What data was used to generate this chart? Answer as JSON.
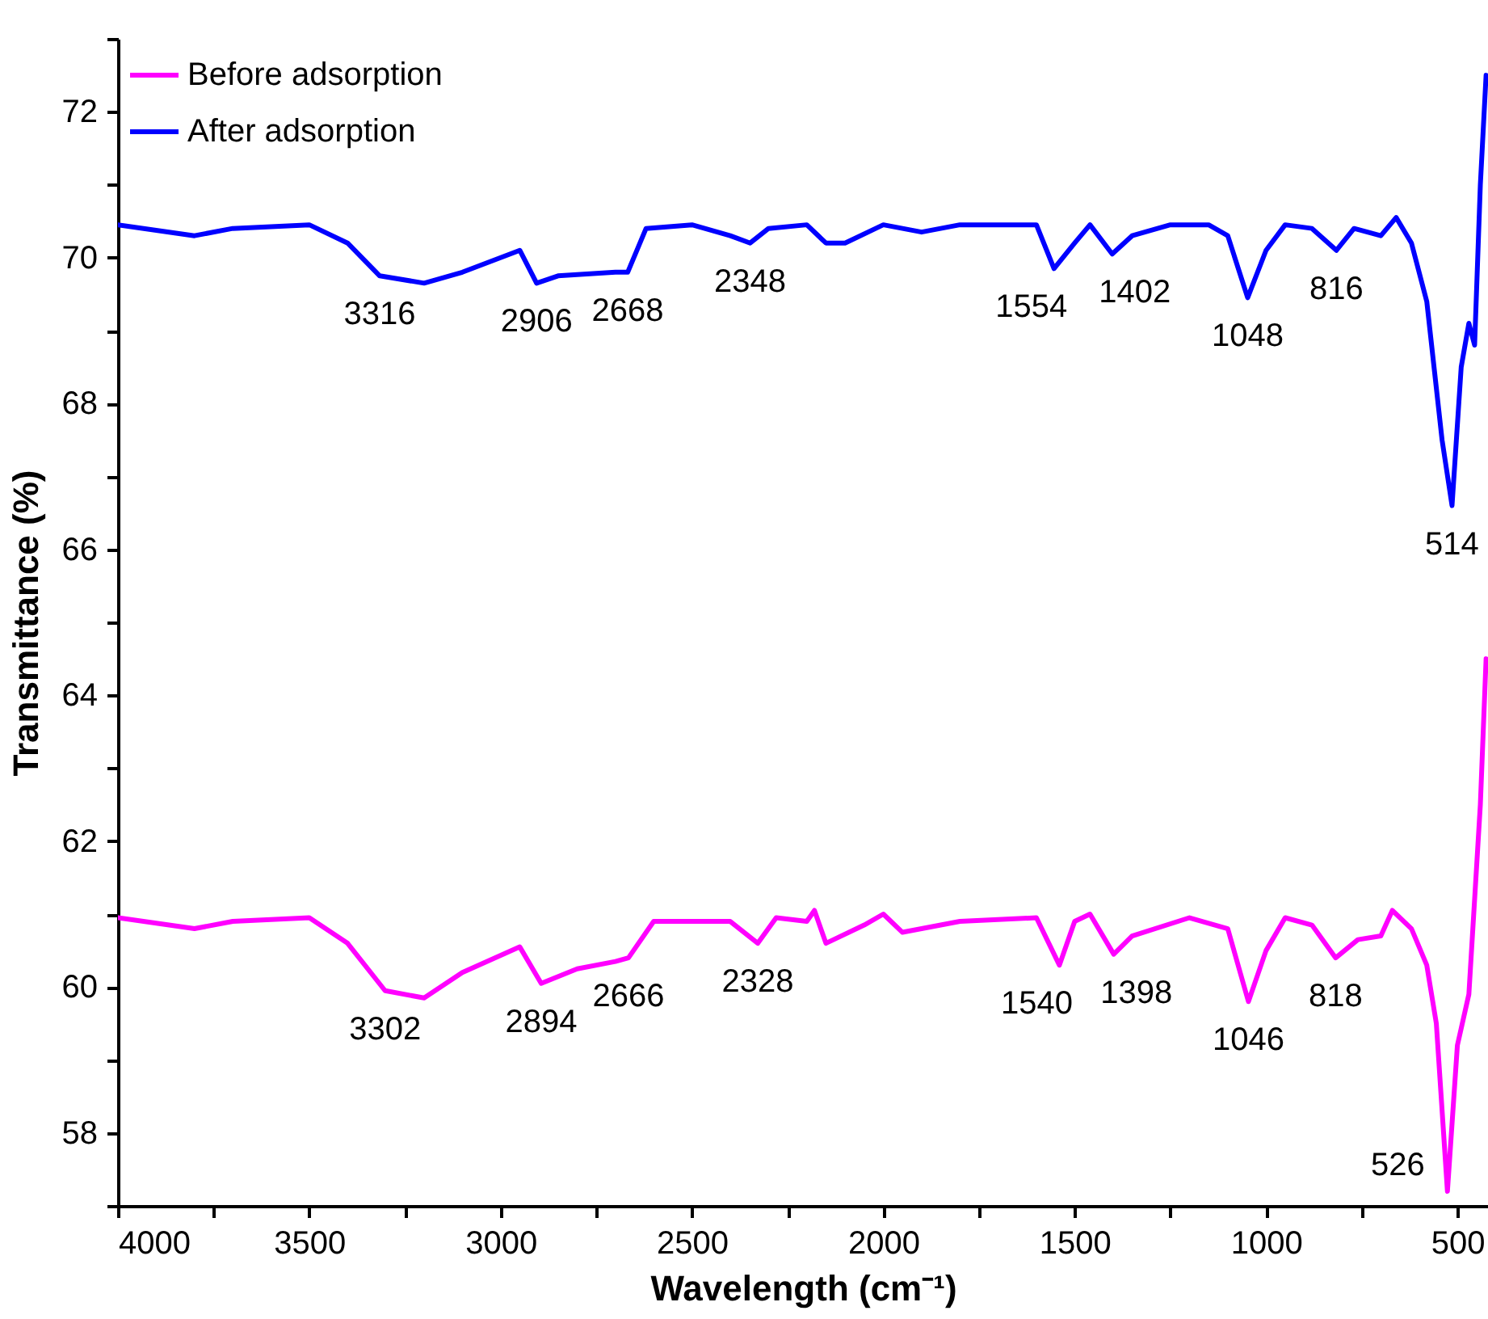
{
  "chart_data": {
    "type": "line",
    "xlabel": "Wavelength (cm⁻¹)",
    "ylabel": "Transmittance (%)",
    "xlim": [
      4000,
      420
    ],
    "ylim": [
      57,
      73
    ],
    "xticks": [
      4000,
      {
        "value": 3750,
        "label": null
      },
      3500,
      {
        "value": 3250,
        "label": null
      },
      3000,
      {
        "value": 2750,
        "label": null
      },
      2500,
      {
        "value": 2250,
        "label": null
      },
      2000,
      {
        "value": 1750,
        "label": null
      },
      1500,
      {
        "value": 1250,
        "label": null
      },
      1000,
      {
        "value": 750,
        "label": null
      },
      500
    ],
    "yticks": [
      {
        "value": 57,
        "label": null
      },
      58,
      {
        "value": 59,
        "label": null
      },
      60,
      {
        "value": 61,
        "label": null
      },
      62,
      {
        "value": 63,
        "label": null
      },
      64,
      {
        "value": 65,
        "label": null
      },
      66,
      {
        "value": 67,
        "label": null
      },
      68,
      {
        "value": 69,
        "label": null
      },
      70,
      {
        "value": 71,
        "label": null
      },
      72,
      {
        "value": 73,
        "label": null
      }
    ],
    "grid": false,
    "legend": "top left",
    "line_style": "solid",
    "marker": "none",
    "series": [
      {
        "name": "Before adsorption",
        "color": "#ff00ff",
        "x": [
          4000,
          3800,
          3700,
          3500,
          3400,
          3302,
          3200,
          3100,
          2950,
          2894,
          2800,
          2700,
          2666,
          2600,
          2400,
          2328,
          2280,
          2200,
          2180,
          2150,
          2050,
          2000,
          1950,
          1800,
          1600,
          1540,
          1500,
          1460,
          1398,
          1350,
          1200,
          1100,
          1046,
          1000,
          950,
          880,
          818,
          760,
          700,
          670,
          620,
          580,
          555,
          526,
          500,
          470,
          440,
          425
        ],
        "values": [
          60.95,
          60.8,
          60.9,
          60.95,
          60.6,
          59.95,
          59.85,
          60.2,
          60.55,
          60.05,
          60.25,
          60.35,
          60.4,
          60.9,
          60.9,
          60.6,
          60.95,
          60.9,
          61.05,
          60.6,
          60.85,
          61.0,
          60.75,
          60.9,
          60.95,
          60.3,
          60.9,
          61.0,
          60.45,
          60.7,
          60.95,
          60.8,
          59.8,
          60.5,
          60.95,
          60.85,
          60.4,
          60.65,
          60.7,
          61.05,
          60.8,
          60.3,
          59.5,
          57.2,
          59.2,
          59.9,
          62.5,
          64.5
        ]
      },
      {
        "name": "After adsorption",
        "color": "#0000ff",
        "x": [
          4000,
          3800,
          3700,
          3500,
          3400,
          3316,
          3200,
          3100,
          3000,
          2950,
          2906,
          2850,
          2700,
          2668,
          2620,
          2500,
          2400,
          2348,
          2300,
          2200,
          2150,
          2100,
          2000,
          1900,
          1800,
          1600,
          1554,
          1500,
          1460,
          1402,
          1350,
          1250,
          1150,
          1100,
          1048,
          1000,
          950,
          880,
          816,
          770,
          700,
          660,
          620,
          580,
          540,
          514,
          490,
          470,
          455,
          440,
          425
        ],
        "values": [
          70.45,
          70.3,
          70.4,
          70.45,
          70.2,
          69.75,
          69.65,
          69.8,
          70.0,
          70.1,
          69.65,
          69.75,
          69.8,
          69.8,
          70.4,
          70.45,
          70.3,
          70.2,
          70.4,
          70.45,
          70.2,
          70.2,
          70.45,
          70.35,
          70.45,
          70.45,
          69.85,
          70.2,
          70.45,
          70.05,
          70.3,
          70.45,
          70.45,
          70.3,
          69.45,
          70.1,
          70.45,
          70.4,
          70.1,
          70.4,
          70.3,
          70.55,
          70.2,
          69.4,
          67.5,
          66.6,
          68.5,
          69.1,
          68.8,
          71,
          72.5
        ]
      }
    ],
    "annotations": [
      {
        "text": "3316",
        "x": 3316,
        "y": 69.75
      },
      {
        "text": "2906",
        "x": 2906,
        "y": 69.65
      },
      {
        "text": "2668",
        "x": 2668,
        "y": 69.8
      },
      {
        "text": "2348",
        "x": 2348,
        "y": 70.2
      },
      {
        "text": "1554",
        "x": 1554,
        "y": 69.85
      },
      {
        "text": "1402",
        "x": 1402,
        "y": 70.05
      },
      {
        "text": "1048",
        "x": 1048,
        "y": 69.45
      },
      {
        "text": "816",
        "x": 816,
        "y": 70.1
      },
      {
        "text": "514",
        "x": 514,
        "y": 66.6
      },
      {
        "text": "3302",
        "x": 3302,
        "y": 59.95
      },
      {
        "text": "2894",
        "x": 2894,
        "y": 60.05
      },
      {
        "text": "2666",
        "x": 2666,
        "y": 60.4
      },
      {
        "text": "2328",
        "x": 2328,
        "y": 60.6
      },
      {
        "text": "1540",
        "x": 1540,
        "y": 60.3
      },
      {
        "text": "1398",
        "x": 1398,
        "y": 60.45
      },
      {
        "text": "1046",
        "x": 1046,
        "y": 59.8
      },
      {
        "text": "818",
        "x": 818,
        "y": 60.4
      },
      {
        "text": "526",
        "x": 526,
        "y": 57.2
      }
    ]
  }
}
